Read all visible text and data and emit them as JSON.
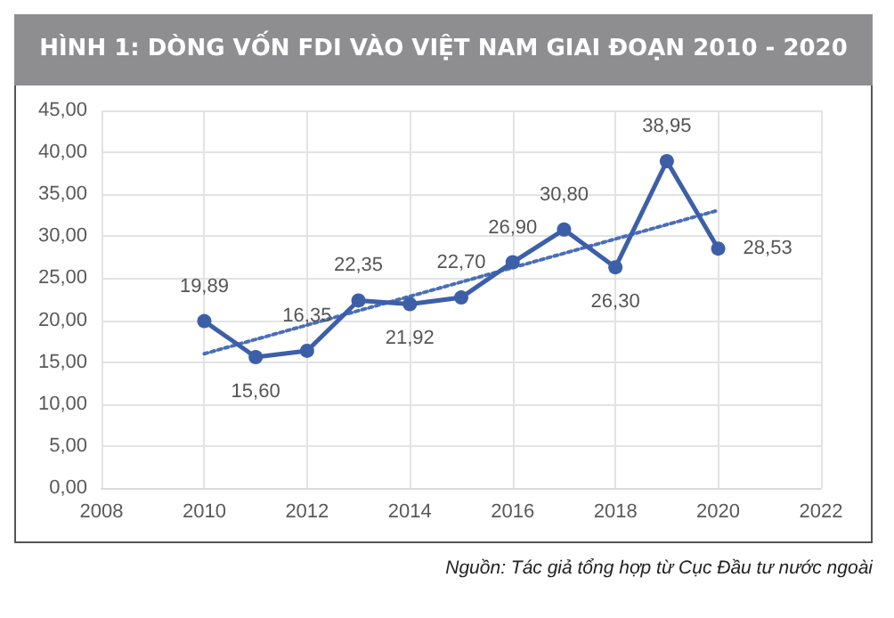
{
  "chart_data": {
    "type": "line",
    "title": "HÌNH 1: DÒNG VỐN FDI VÀO VIỆT NAM GIAI ĐOẠN 2010 - 2020",
    "x": [
      2010,
      2011,
      2012,
      2013,
      2014,
      2015,
      2016,
      2017,
      2018,
      2019,
      2020
    ],
    "series": [
      {
        "color": "#3d5fa8",
        "values": [
          19.89,
          15.6,
          16.35,
          22.35,
          21.92,
          22.7,
          26.9,
          30.8,
          26.3,
          38.95,
          28.53
        ],
        "value_labels": [
          "19,89",
          "15,60",
          "16,35",
          "22,35",
          "21,92",
          "22,70",
          "26,90",
          "30,80",
          "26,30",
          "38,95",
          "28,53"
        ],
        "marker": "circle",
        "line_style": "solid"
      },
      {
        "color": "#4a6fb8",
        "x": [
          2010,
          2020
        ],
        "values": [
          16.0,
          33.1
        ],
        "marker": "none",
        "line_style": "dotted"
      }
    ],
    "xlim": [
      2008,
      2022
    ],
    "xticks": [
      2008,
      2010,
      2012,
      2014,
      2016,
      2018,
      2020,
      2022
    ],
    "ylim": [
      0,
      45
    ],
    "yticks": [
      {
        "value": 0,
        "label": "0,00"
      },
      {
        "value": 5,
        "label": "5,00"
      },
      {
        "value": 10,
        "label": "10,00"
      },
      {
        "value": 15,
        "label": "15,00"
      },
      {
        "value": 20,
        "label": "20,00"
      },
      {
        "value": 25,
        "label": "25,00"
      },
      {
        "value": 30,
        "label": "30,00"
      },
      {
        "value": 35,
        "label": "35,00"
      },
      {
        "value": 40,
        "label": "40,00"
      },
      {
        "value": 45,
        "label": "45,00"
      }
    ],
    "grid": true,
    "annotations": [
      "Nguồn: Tác giả tổng hợp từ Cục Đầu tư nước ngoài"
    ]
  }
}
